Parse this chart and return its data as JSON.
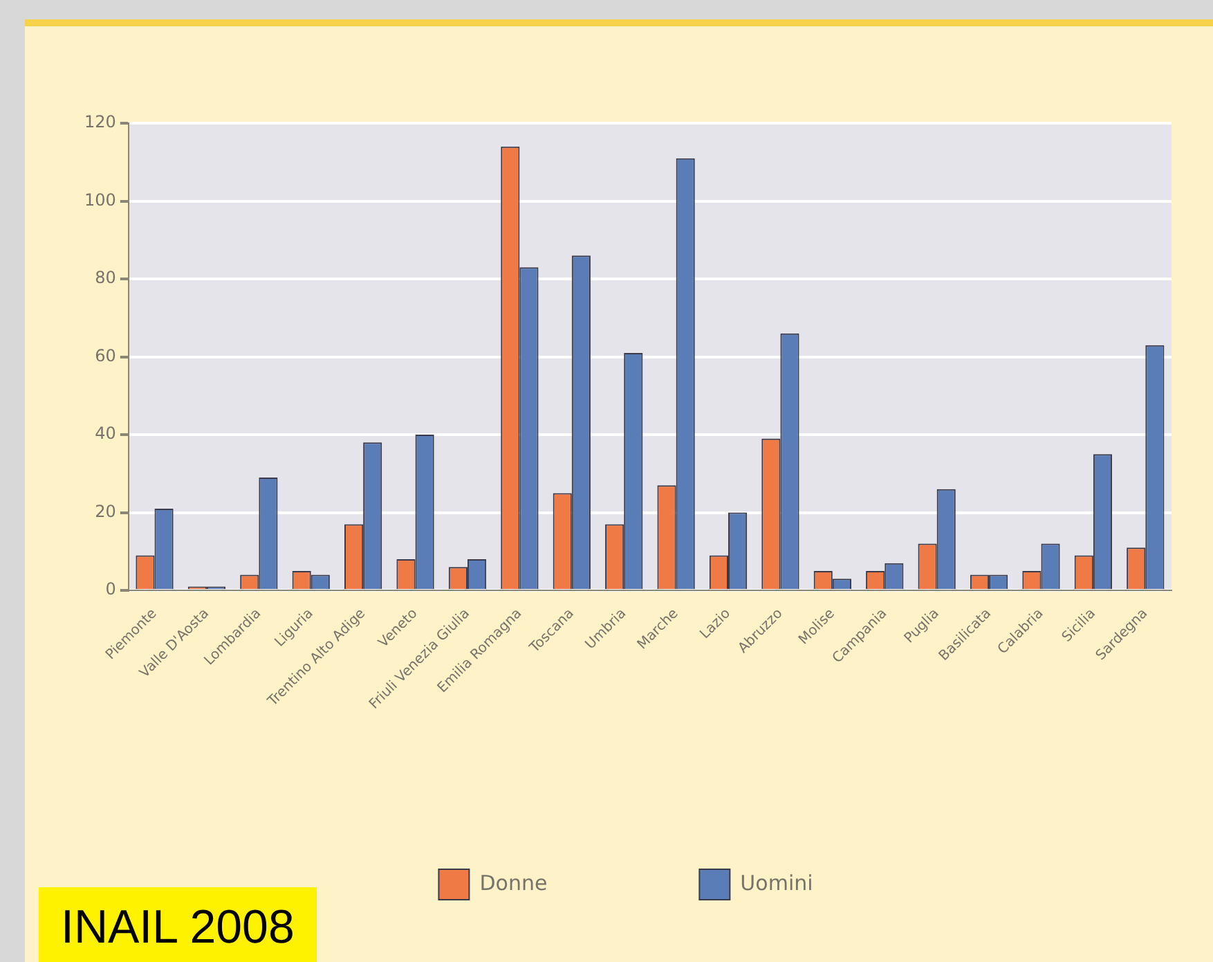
{
  "chart_data": {
    "type": "bar",
    "categories": [
      "Piemonte",
      "Valle D'Aosta",
      "Lombardia",
      "Liguria",
      "Trentino Alto Adige",
      "Veneto",
      "Friuli Venezia Giulia",
      "Emilia Romagna",
      "Toscana",
      "Umbria",
      "Marche",
      "Lazio",
      "Abruzzo",
      "Molise",
      "Campania",
      "Puglia",
      "Basilicata",
      "Calabria",
      "Sicilia",
      "Sardegna"
    ],
    "series": [
      {
        "name": "Donne",
        "color": "#f07a45",
        "values": [
          9,
          1,
          4,
          5,
          17,
          8,
          6,
          114,
          25,
          17,
          27,
          9,
          39,
          5,
          5,
          12,
          4,
          5,
          9,
          11
        ]
      },
      {
        "name": "Uomini",
        "color": "#5a7db8",
        "values": [
          21,
          1,
          29,
          4,
          38,
          40,
          8,
          83,
          86,
          61,
          111,
          20,
          66,
          3,
          7,
          26,
          4,
          12,
          35,
          63
        ]
      }
    ],
    "ylim": [
      0,
      120
    ],
    "yticks": [
      0,
      20,
      40,
      60,
      80,
      100,
      120
    ],
    "grid": "y",
    "legend": "bottom",
    "annotations": [
      "INAIL 2008"
    ]
  }
}
